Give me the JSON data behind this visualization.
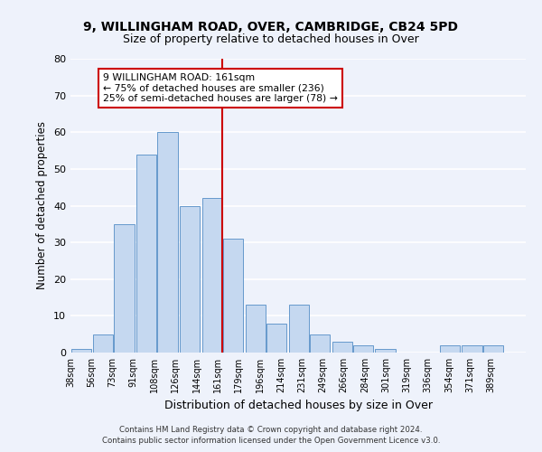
{
  "title": "9, WILLINGHAM ROAD, OVER, CAMBRIDGE, CB24 5PD",
  "subtitle": "Size of property relative to detached houses in Over",
  "xlabel": "Distribution of detached houses by size in Over",
  "ylabel": "Number of detached properties",
  "bg_color": "#eef2fb",
  "bar_color": "#c5d8f0",
  "bar_edge_color": "#6699cc",
  "grid_color": "#ffffff",
  "vline_x": 161,
  "vline_color": "#cc0000",
  "annotation_text": "9 WILLINGHAM ROAD: 161sqm\n← 75% of detached houses are smaller (236)\n25% of semi-detached houses are larger (78) →",
  "annotation_box_color": "#ffffff",
  "annotation_box_edge": "#cc0000",
  "bins_left": [
    38,
    56,
    73,
    91,
    108,
    126,
    144,
    161,
    179,
    196,
    214,
    231,
    249,
    266,
    284,
    301,
    319,
    336,
    354,
    371
  ],
  "bin_width": 17,
  "heights": [
    1,
    5,
    35,
    54,
    60,
    40,
    42,
    31,
    13,
    8,
    13,
    5,
    3,
    2,
    1,
    0,
    0,
    2,
    2,
    2
  ],
  "tick_labels": [
    "38sqm",
    "56sqm",
    "73sqm",
    "91sqm",
    "108sqm",
    "126sqm",
    "144sqm",
    "161sqm",
    "179sqm",
    "196sqm",
    "214sqm",
    "231sqm",
    "249sqm",
    "266sqm",
    "284sqm",
    "301sqm",
    "319sqm",
    "336sqm",
    "354sqm",
    "371sqm",
    "389sqm"
  ],
  "ylim": [
    0,
    80
  ],
  "yticks": [
    0,
    10,
    20,
    30,
    40,
    50,
    60,
    70,
    80
  ],
  "footer1": "Contains HM Land Registry data © Crown copyright and database right 2024.",
  "footer2": "Contains public sector information licensed under the Open Government Licence v3.0."
}
